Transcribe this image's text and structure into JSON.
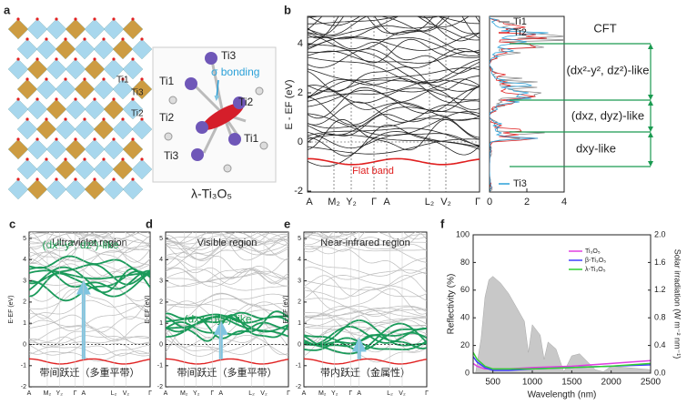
{
  "panels": {
    "a": {
      "label": "a",
      "site_labels": [
        "Ti1",
        "Ti3",
        "Ti2"
      ],
      "molecule_labels": [
        "Ti3",
        "Ti1",
        "Ti2",
        "Ti2",
        "Ti1",
        "Ti3"
      ],
      "bond": "σ bonding",
      "formula": "λ-Ti₃O₅"
    },
    "b": {
      "label": "b",
      "ylabel": "E - EF (eV)",
      "yticks": [
        4,
        2,
        0,
        -2
      ],
      "kpoints": [
        "A",
        "M₂",
        "Y₂",
        "Γ",
        "A",
        "L₂",
        "V₂",
        "Γ"
      ],
      "flat_band": "Flat band",
      "dos": {
        "legend": [
          "Ti1",
          "Ti2",
          "Ti3"
        ],
        "xticks": [
          0,
          2,
          4
        ]
      },
      "cft": {
        "title": "CFT",
        "levels": [
          "(dx²-y², dz²)-like",
          "(dxz, dyz)-like",
          "dxy-like"
        ]
      }
    },
    "c": {
      "label": "c",
      "title": "Ultraviolet region",
      "ylabel": "E-EF (eV)",
      "yticks": [
        5,
        4,
        3,
        2,
        1,
        0,
        -1,
        -2
      ],
      "kpoints": [
        "A",
        "M₂",
        "Y₂",
        "Γ",
        "A",
        "L₂",
        "V₂",
        "Γ"
      ],
      "annotation": "(dx²-y², dz²)-like",
      "caption": "带间跃迁（多重平带）"
    },
    "d": {
      "label": "d",
      "title": "Visible region",
      "ylabel": "E-EF (eV)",
      "yticks": [
        5,
        4,
        3,
        2,
        1,
        0,
        -1,
        -2
      ],
      "kpoints": [
        "A",
        "M₂",
        "Y₂",
        "Γ",
        "A",
        "L₂",
        "V₂",
        "Γ"
      ],
      "annotation": "(dxz, dyz)-like",
      "caption": "带间跃迁（多重平带）"
    },
    "e": {
      "label": "e",
      "title": "Near-infrared region",
      "ylabel": "E-EF (eV)",
      "yticks": [
        5,
        4,
        3,
        2,
        1,
        0,
        -1,
        -2
      ],
      "kpoints": [
        "A",
        "M₂",
        "Y₂",
        "Γ",
        "A",
        "L₂",
        "V₂",
        "Γ"
      ],
      "caption": "带内跃迁（金属性）"
    },
    "f": {
      "label": "f",
      "xlabel": "Wavelength (nm)",
      "ylabel": "Reflectivity (%)",
      "y2label": "Solar irradiation (W m⁻² nm⁻¹)",
      "xlim": [
        250,
        2500
      ],
      "xticks": [
        500,
        1000,
        1500,
        2000,
        2500
      ],
      "ylim": [
        0,
        100
      ],
      "yticks": [
        0,
        20,
        40,
        60,
        80,
        100
      ],
      "y2lim": [
        0,
        2
      ],
      "y2ticks": [
        {
          "value": 0,
          "label": "0.0"
        },
        {
          "value": 0.4,
          "label": "0.4"
        },
        {
          "value": 0.8,
          "label": "0.8"
        },
        {
          "value": 1.2,
          "label": "1.2"
        },
        {
          "value": 1.6,
          "label": "1.6"
        },
        {
          "value": 2,
          "label": "2.0"
        }
      ],
      "x": [
        250,
        300,
        400,
        500,
        700,
        1000,
        1500,
        2000,
        2500
      ],
      "series": [
        {
          "name": "Ti₃O₅",
          "color": "#e040e0",
          "values": [
            7,
            5,
            3,
            3,
            3,
            4,
            5,
            7,
            9
          ]
        },
        {
          "name": "β-Ti₃O₅",
          "color": "#4040ff",
          "values": [
            12,
            8,
            4,
            2,
            2,
            3,
            4,
            5,
            6
          ]
        },
        {
          "name": "λ-Ti₃O₅",
          "color": "#30d030",
          "values": [
            15,
            10,
            5,
            3,
            3,
            3,
            4,
            5,
            7
          ]
        }
      ],
      "solar": {
        "color": "#c8c8c8",
        "x": [
          280,
          350,
          400,
          450,
          500,
          550,
          600,
          700,
          800,
          900,
          950,
          1000,
          1100,
          1150,
          1200,
          1300,
          1400,
          1500,
          1600,
          1800,
          1900,
          2000,
          2200,
          2500
        ],
        "values": [
          0,
          0.5,
          1.1,
          1.35,
          1.4,
          1.35,
          1.3,
          1.15,
          0.95,
          0.75,
          0.3,
          0.7,
          0.55,
          0.2,
          0.45,
          0.35,
          0.02,
          0.25,
          0.28,
          0.05,
          0.02,
          0.1,
          0.08,
          0.05
        ]
      }
    }
  }
}
